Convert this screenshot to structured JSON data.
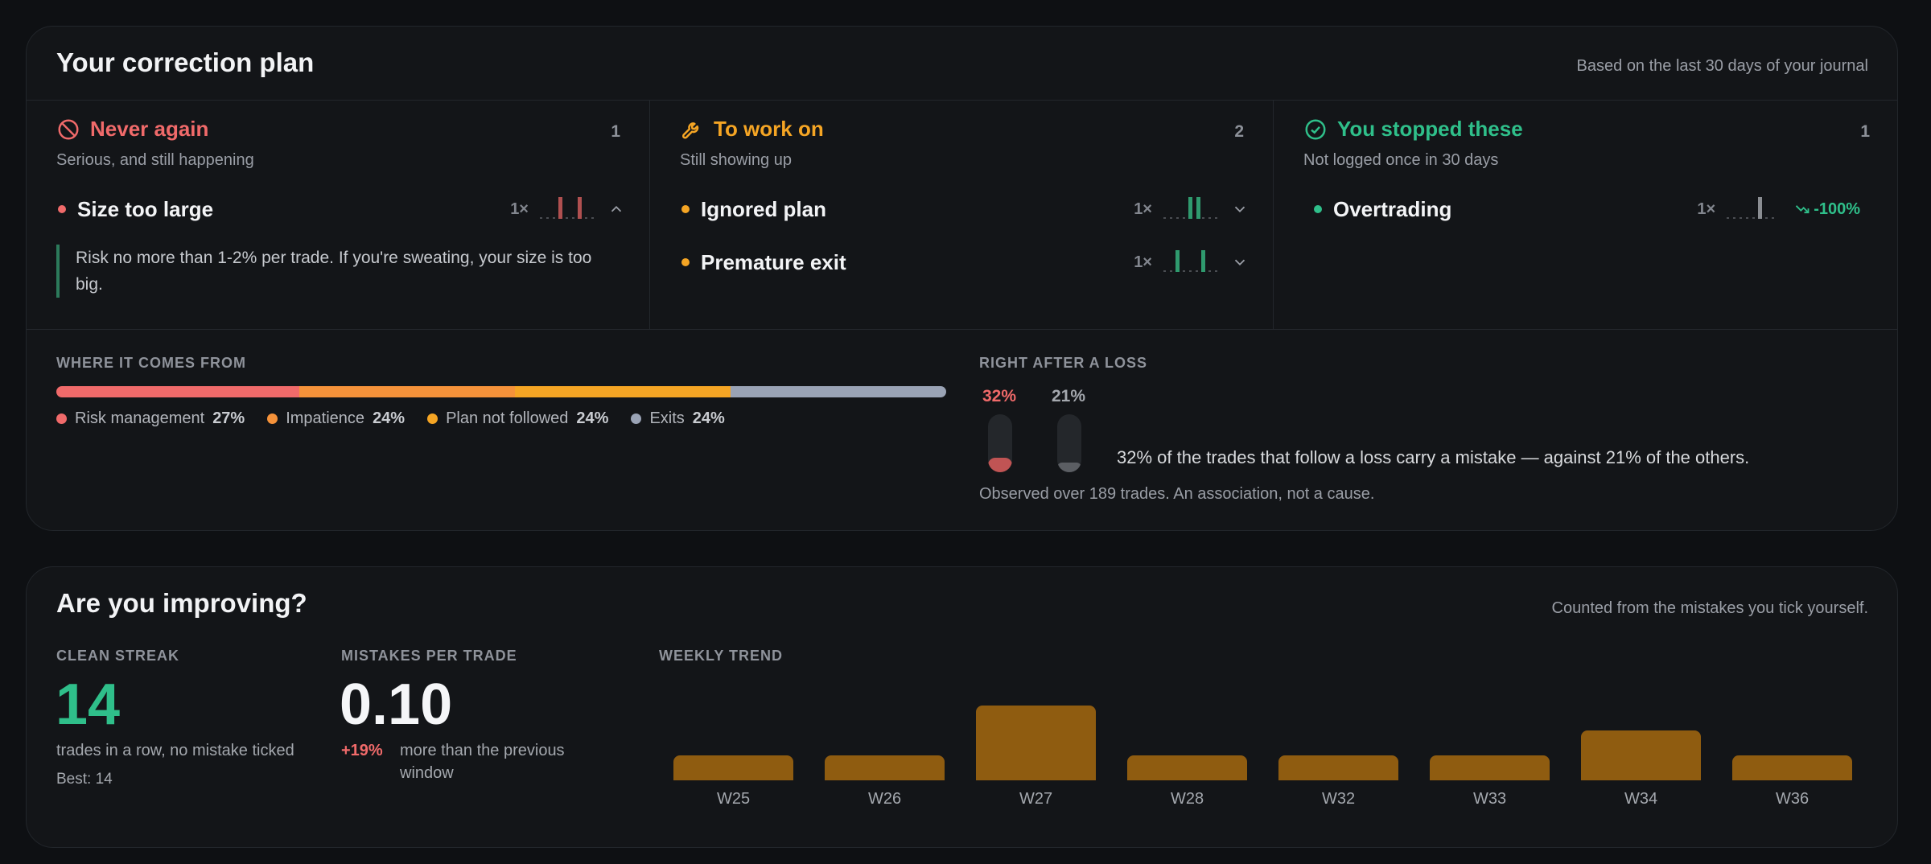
{
  "plan": {
    "title": "Your correction plan",
    "note": "Based on the last 30 days of your journal",
    "columns": [
      {
        "title": "Never again",
        "icon": "ban-icon",
        "color": "#f06a6a",
        "count": "1",
        "subtitle": "Serious, and still happening",
        "items": [
          {
            "name": "Size too large",
            "count": "1×",
            "color": "#f06a6a",
            "expanded": true,
            "advice": "Risk no more than 1-2% per trade. If you're sweating, your size is too big."
          }
        ]
      },
      {
        "title": "To work on",
        "icon": "wrench-icon",
        "color": "#f5a524",
        "count": "2",
        "subtitle": "Still showing up",
        "items": [
          {
            "name": "Ignored plan",
            "count": "1×",
            "color": "#f5a524"
          },
          {
            "name": "Premature exit",
            "count": "1×",
            "color": "#f5a524"
          }
        ]
      },
      {
        "title": "You stopped these",
        "icon": "check-circle-icon",
        "color": "#2fbf8a",
        "count": "1",
        "subtitle": "Not logged once in 30 days",
        "items": [
          {
            "name": "Overtrading",
            "count": "1×",
            "color": "#2fbf8a",
            "trend": "-100%"
          }
        ]
      }
    ],
    "origin": {
      "label": "WHERE IT COMES FROM",
      "segments": [
        {
          "name": "Risk management",
          "pct": "27%",
          "value": 27,
          "color": "#f06a6a"
        },
        {
          "name": "Impatience",
          "pct": "24%",
          "value": 24,
          "color": "#f5923a"
        },
        {
          "name": "Plan not followed",
          "pct": "24%",
          "value": 24,
          "color": "#f5a524"
        },
        {
          "name": "Exits",
          "pct": "24%",
          "value": 24,
          "color": "#9aa3b5"
        }
      ]
    },
    "loss": {
      "label": "RIGHT AFTER A LOSS",
      "after_loss_pct": "32%",
      "after_loss_value": 32,
      "others_pct": "21%",
      "others_value": 21,
      "text": "32% of the trades that follow a loss carry a mistake — against 21% of the others.",
      "foot": "Observed over 189 trades. An association, not a cause."
    }
  },
  "improve": {
    "title": "Are you improving?",
    "note": "Counted from the mistakes you tick yourself.",
    "streak": {
      "label": "CLEAN STREAK",
      "value": "14",
      "caption": "trades in a row, no mistake ticked",
      "best": "Best: 14"
    },
    "per_trade": {
      "label": "MISTAKES PER TRADE",
      "value": "0.10",
      "change": "+19%",
      "caption_1": "more than the previous",
      "caption_2": "window"
    },
    "weekly_label": "WEEKLY TREND"
  },
  "chart_data": {
    "type": "bar",
    "categories": [
      "W25",
      "W26",
      "W27",
      "W28",
      "W32",
      "W33",
      "W34",
      "W36"
    ],
    "values": [
      1,
      1,
      3,
      1,
      1,
      1,
      2,
      1
    ],
    "color": "#8f5c10",
    "title": "WEEKLY TREND"
  }
}
